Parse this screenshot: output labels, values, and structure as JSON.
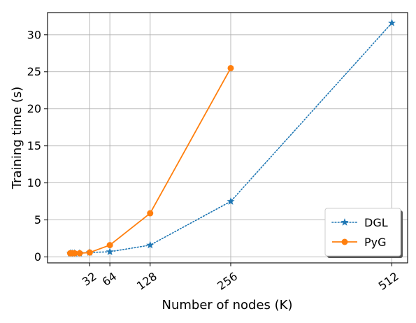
{
  "chart_data": {
    "type": "line",
    "xlabel": "Number of nodes (K)",
    "ylabel": "Training time (s)",
    "xlim": [
      -35,
      537
    ],
    "ylim": [
      -0.8,
      33.0
    ],
    "x_ticks": [
      32,
      64,
      128,
      256,
      512
    ],
    "y_ticks": [
      0,
      5,
      10,
      15,
      20,
      25,
      30
    ],
    "grid": true,
    "legend_position": "lower right",
    "series": [
      {
        "name": "DGL",
        "style": "dotted",
        "marker": "star",
        "color": "#1f77b4",
        "x": [
          1,
          4,
          8,
          16,
          32,
          64,
          128,
          256,
          512
        ],
        "y": [
          0.5,
          0.5,
          0.5,
          0.5,
          0.6,
          0.7,
          1.6,
          7.5,
          31.6
        ]
      },
      {
        "name": "PyG",
        "style": "solid",
        "marker": "circle",
        "color": "#ff7f0e",
        "x": [
          1,
          4,
          8,
          16,
          32,
          64,
          128,
          256
        ],
        "y": [
          0.5,
          0.5,
          0.5,
          0.5,
          0.6,
          1.6,
          5.9,
          25.5
        ]
      }
    ]
  }
}
